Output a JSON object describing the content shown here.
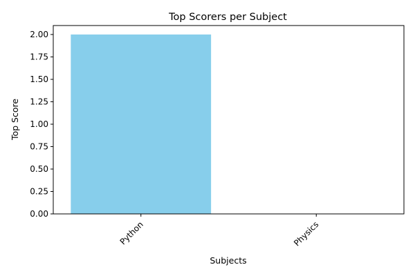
{
  "chart_data": {
    "type": "bar",
    "title": "Top Scorers per Subject",
    "xlabel": "Subjects",
    "ylabel": "Top Score",
    "categories": [
      "Python",
      "Physics"
    ],
    "values": [
      2,
      0
    ],
    "ylim": [
      0,
      2.1
    ],
    "yticks": [
      "0.00",
      "0.25",
      "0.50",
      "0.75",
      "1.00",
      "1.25",
      "1.50",
      "1.75",
      "2.00"
    ],
    "bar_color": "#87ceeb",
    "grid": false
  }
}
